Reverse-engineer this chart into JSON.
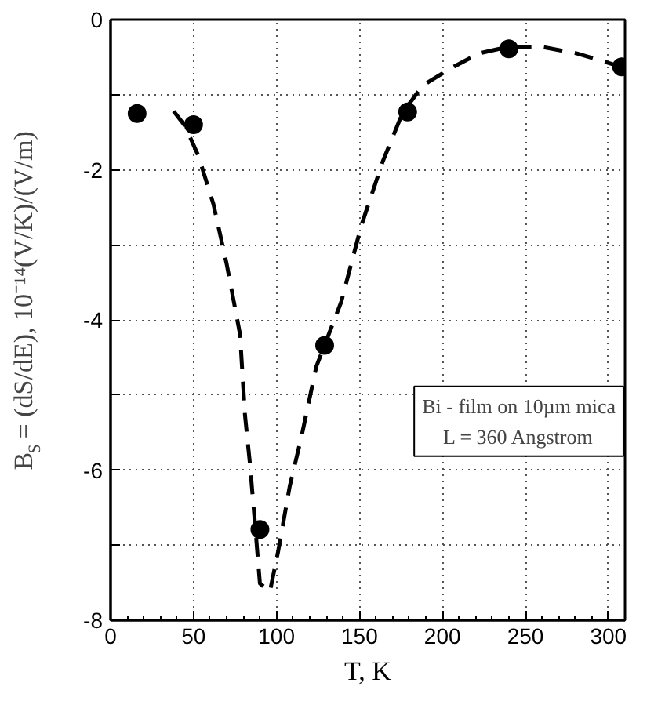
{
  "chart_data": {
    "type": "scatter",
    "xlabel": "T, K",
    "ylabel": "B$_{S}$ = (dS/dE), 10⁻¹⁴(V/K)/(V/m)",
    "xlim": [
      0,
      310
    ],
    "ylim": [
      -8,
      0
    ],
    "xticks": [
      0,
      50,
      100,
      150,
      200,
      250,
      300
    ],
    "yticks": [
      {
        "value": -8,
        "label": "-8"
      },
      {
        "value": -7,
        "label": null
      },
      {
        "value": -6,
        "label": "-6"
      },
      {
        "value": -5,
        "label": null
      },
      {
        "value": -4,
        "label": "-4"
      },
      {
        "value": -3,
        "label": null
      },
      {
        "value": -2,
        "label": "-2"
      },
      {
        "value": -1,
        "label": null
      },
      0
    ],
    "grid": true,
    "annotations": [
      "Bi - film on 10µm mica",
      "L = 360 Angstrom"
    ],
    "series": [
      {
        "marker": "circle",
        "color": "#000000",
        "x": [
          16,
          50,
          90,
          129,
          179,
          240,
          308
        ],
        "values": [
          -1.25,
          -1.4,
          -6.79,
          -4.34,
          -1.23,
          -0.39,
          -0.63
        ]
      },
      {
        "type": "line",
        "line_style": "dashed",
        "marker": "none",
        "color": "#000000",
        "x": [
          38,
          45,
          53,
          62,
          70,
          78,
          81,
          84,
          87,
          90,
          96,
          101,
          108,
          115,
          124,
          139,
          151,
          164,
          176,
          188,
          204,
          222,
          240,
          259,
          281,
          308
        ],
        "values": [
          -1.22,
          -1.42,
          -1.82,
          -2.46,
          -3.26,
          -4.19,
          -5.27,
          -5.92,
          -6.71,
          -7.51,
          -7.62,
          -7.08,
          -6.21,
          -5.56,
          -4.62,
          -3.76,
          -2.75,
          -1.89,
          -1.24,
          -0.88,
          -0.66,
          -0.45,
          -0.36,
          -0.36,
          -0.45,
          -0.63
        ]
      }
    ]
  }
}
